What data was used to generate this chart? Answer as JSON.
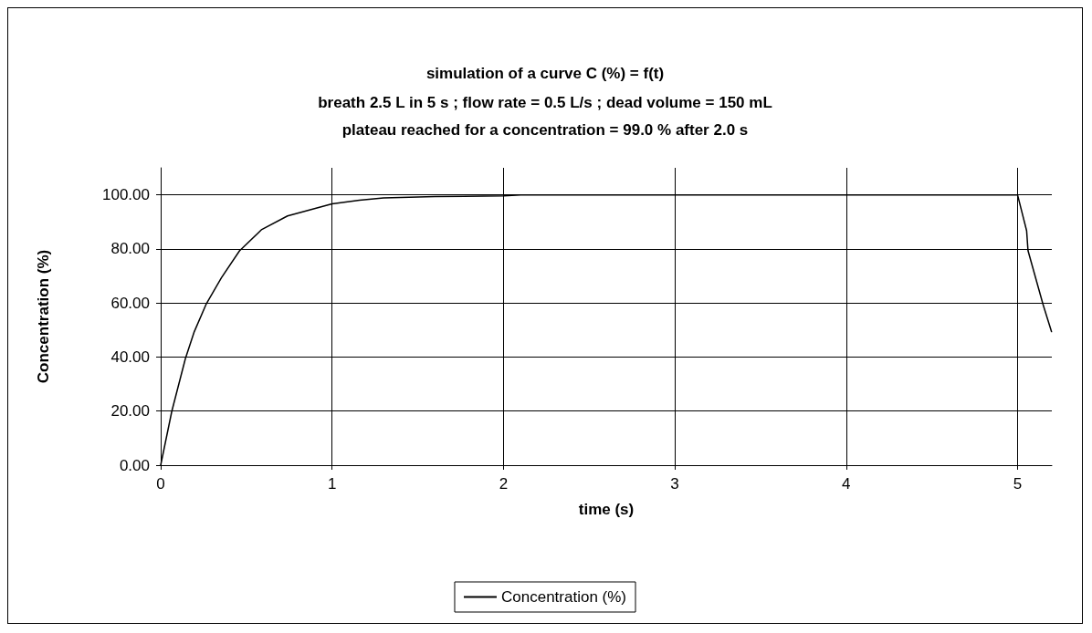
{
  "chart_data": {
    "type": "line",
    "title": "simulation of a curve C (%) = f(t)",
    "subtitle": "breath 2.5 L in 5 s ; flow rate = 0.5 L/s ; dead volume = 150 mL\nplateau reached for a concentration = 99.0 % after 2.0 s",
    "xlabel": "time (s)",
    "ylabel": "Concentration (%)",
    "x": [
      0,
      0.065,
      0.144,
      0.196,
      0.267,
      0.354,
      0.46,
      0.59,
      0.74,
      1.0,
      1.16,
      1.3,
      1.6,
      2.0,
      2.1,
      3.0,
      4.0,
      5.0,
      5.053,
      5.061,
      5.149,
      5.198
    ],
    "series": [
      {
        "name": "Concentration (%)",
        "color": "#000000",
        "values": [
          0,
          20,
          39.4,
          49.4,
          59.8,
          69.3,
          79.3,
          87.2,
          92.2,
          96.7,
          98,
          98.9,
          99.4,
          99.6,
          100,
          100,
          100,
          100,
          86.7,
          79.4,
          59.4,
          49.4
        ]
      }
    ],
    "xlim": [
      0,
      5.2
    ],
    "xticks": [
      0,
      1,
      2,
      3,
      4,
      5
    ],
    "ylim": [
      0,
      110
    ],
    "yticks": [
      {
        "value": 0,
        "label": "0.00"
      },
      {
        "value": 20,
        "label": "20.00"
      },
      {
        "value": 40,
        "label": "40.00"
      },
      {
        "value": 60,
        "label": "60.00"
      },
      {
        "value": 80,
        "label": "80.00"
      },
      {
        "value": 100,
        "label": "100.00"
      }
    ],
    "grid": true,
    "legend": "bottom",
    "marker": "none",
    "line_style": "solid"
  }
}
